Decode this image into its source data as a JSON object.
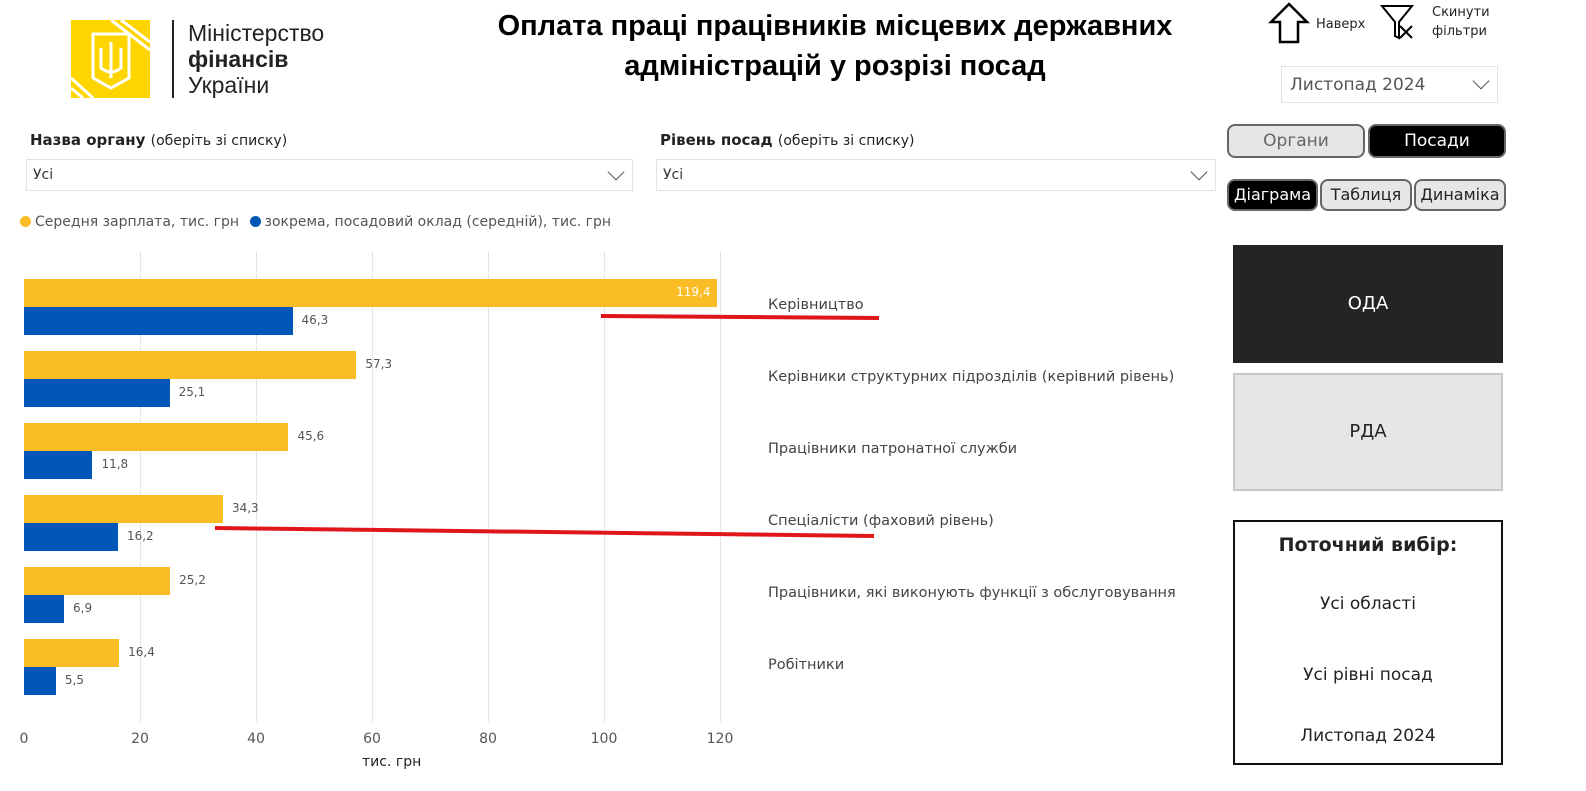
{
  "logo": {
    "line1": "Міністерство",
    "line2": "фінансів",
    "line3": "України"
  },
  "title": "Оплата праці працівників місцевих державних адміністрацій у розрізі посад",
  "top_actions": {
    "up_label": "Наверх",
    "reset_label_1": "Скинути",
    "reset_label_2": "фільтри"
  },
  "period_select": {
    "value": "Листопад 2024"
  },
  "filters": {
    "organ": {
      "label": "Назва органу",
      "hint": "(оберіть зі списку)",
      "value": "Усі"
    },
    "level": {
      "label": "Рівень посад",
      "hint": "(оберіть зі списку)",
      "value": "Усі"
    }
  },
  "view_toggle": {
    "organs": "Органи",
    "positions": "Посади"
  },
  "view_tabs": {
    "diagram": "Діаграма",
    "table": "Таблиця",
    "dynamics": "Динаміка"
  },
  "type_buttons": {
    "oda": "ОДА",
    "rda": "РДА"
  },
  "current": {
    "title": "Поточний вибір:",
    "region": "Усі області",
    "level": "Усі рівні посад",
    "period": "Листопад 2024"
  },
  "colors": {
    "salary": "#FBBD26",
    "base": "#0057B8",
    "annotation": "#E0161B",
    "dark_button": "#252423"
  },
  "chart_data": {
    "type": "bar",
    "orientation": "horizontal",
    "categories": [
      "Керівництво",
      "Керівники структурних підрозділів (керівний рівень)",
      "Працівники патронатної служби",
      "Спеціалісти (фаховий рівень)",
      "Працівники, які виконують функції з обслуговування",
      "Робітники"
    ],
    "series": [
      {
        "name": "Середня зарплата, тис. грн",
        "values": [
          119.4,
          57.3,
          45.6,
          34.3,
          25.2,
          16.4
        ],
        "labels": [
          "119,4",
          "57,3",
          "45,6",
          "34,3",
          "25,2",
          "16,4"
        ]
      },
      {
        "name": "зокрема, посадовий оклад (середній), тис. грн",
        "values": [
          46.3,
          25.1,
          11.8,
          16.2,
          6.9,
          5.5
        ],
        "labels": [
          "46,3",
          "25,1",
          "11,8",
          "16,2",
          "6,9",
          "5,5"
        ]
      }
    ],
    "xlabel": "тис. грн",
    "xlim": [
      0,
      120
    ],
    "xticks": [
      "0",
      "20",
      "40",
      "60",
      "80",
      "100",
      "120"
    ],
    "grid": "vertical dotted",
    "legend": "top-left"
  }
}
